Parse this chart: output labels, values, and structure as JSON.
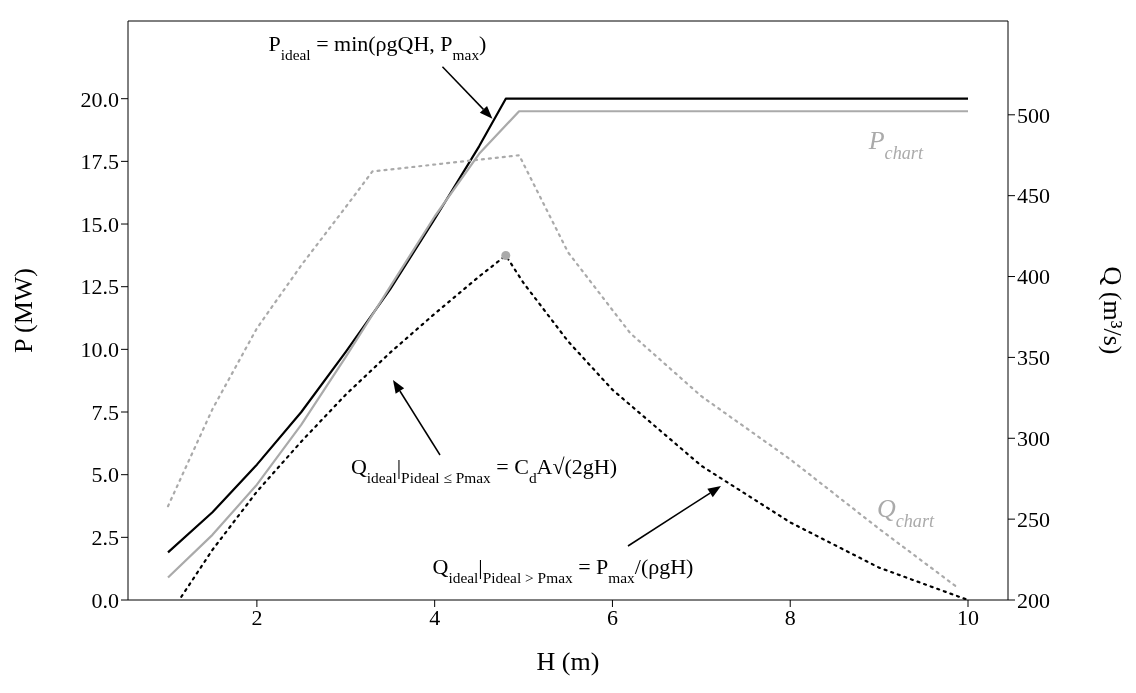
{
  "chart_data": {
    "type": "line",
    "xlabel": "H (m)",
    "ylabel": "P (MW)",
    "y2label": "Q (m³/s)",
    "xlim": [
      0.55,
      10.45
    ],
    "xticks": [
      2,
      4,
      6,
      8,
      10
    ],
    "ylim": [
      0,
      23.1
    ],
    "yticks": [
      {
        "value": 0,
        "label": "0.0"
      },
      {
        "value": 2.5,
        "label": "2.5"
      },
      {
        "value": 5,
        "label": "5.0"
      },
      {
        "value": 7.5,
        "label": "7.5"
      },
      {
        "value": 10,
        "label": "10.0"
      },
      {
        "value": 12.5,
        "label": "12.5"
      },
      {
        "value": 15,
        "label": "15.0"
      },
      {
        "value": 17.5,
        "label": "17.5"
      },
      {
        "value": 20,
        "label": "20.0"
      }
    ],
    "y2lim": [
      200,
      558
    ],
    "y2ticks": [
      200,
      250,
      300,
      350,
      400,
      450,
      500
    ],
    "grid": false,
    "legend": false,
    "marker": "none",
    "series": [
      {
        "color": "#000000",
        "line_style": "solid",
        "x": [
          1,
          1.5,
          2,
          2.5,
          3,
          3.5,
          4,
          4.5,
          4.8,
          10
        ],
        "values": [
          1.9,
          3.5,
          5.4,
          7.5,
          9.9,
          12.4,
          15.2,
          18.1,
          20,
          20
        ]
      },
      {
        "name": "P$_{chart}$",
        "color": "#aaaaaa",
        "line_style": "solid",
        "x": [
          1,
          1.5,
          2,
          2.5,
          3,
          3.5,
          4,
          4.5,
          4.95,
          10
        ],
        "values": [
          0.9,
          2.6,
          4.6,
          7,
          9.7,
          12.5,
          15.3,
          17.8,
          19.5,
          19.5
        ]
      },
      {
        "axis": "y2",
        "color": "#000000",
        "line_style": "dotted",
        "x": [
          1.15,
          1.5,
          2,
          2.5,
          3,
          3.5,
          4,
          4.5,
          4.8,
          5,
          5.5,
          6,
          7,
          8,
          9,
          10
        ],
        "values": [
          202,
          231,
          267,
          298,
          327,
          353,
          377,
          400,
          413,
          396,
          360,
          330,
          283,
          248,
          220,
          200
        ]
      },
      {
        "name": "Q$_{chart}$",
        "axis": "y2",
        "color": "#aaaaaa",
        "line_style": "dotted",
        "x": [
          1,
          1.5,
          2,
          2.5,
          3,
          3.3,
          4.95,
          5.5,
          6.2,
          7,
          8,
          9,
          9.9
        ],
        "values": [
          258,
          318,
          368,
          407,
          443,
          465,
          475,
          415,
          365,
          326,
          287,
          244,
          207
        ]
      },
      {
        "type": "scatter",
        "axis": "y2",
        "color": "#aaaaaa",
        "marker": "circle",
        "x": [
          4.8
        ],
        "values": [
          413
        ]
      }
    ],
    "annotations": [
      {
        "text": "P$_{ideal}$ = min(ρgQH, P$_{max}$)",
        "x": 4.65,
        "y": 19.2
      },
      "Q$_{ideal}$|$_{Pideal ≤ Pmax}$ = C$_{d}$A√(2gH)",
      "Q$_{ideal}$|$_{Pideal > Pmax}$ = P$_{max}$/(ρgH)"
    ]
  }
}
